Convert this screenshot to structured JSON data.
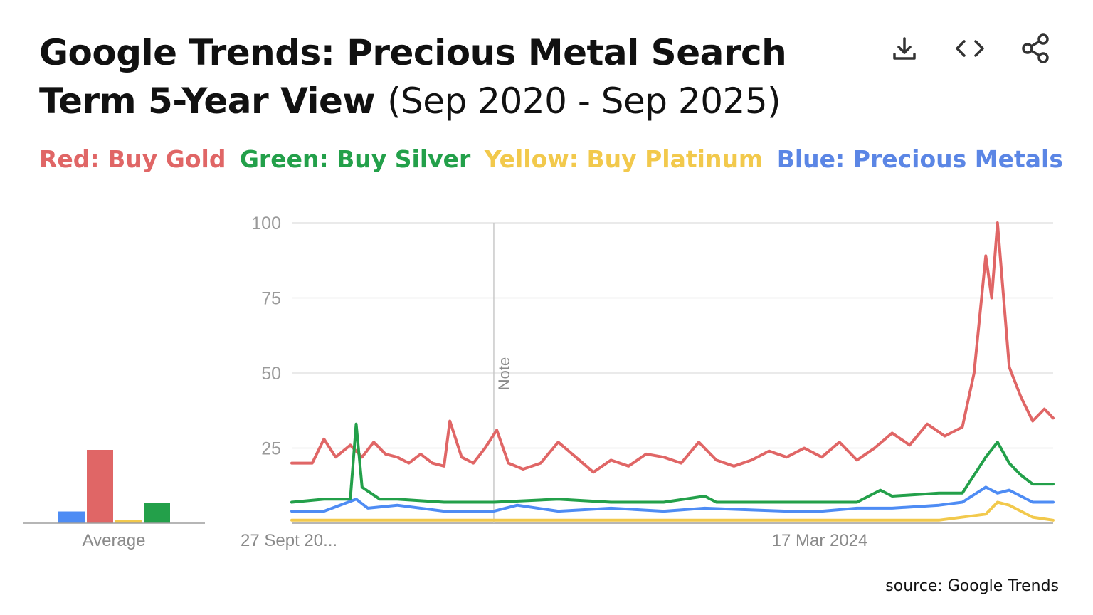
{
  "header": {
    "title_bold": "Google Trends: Precious Metal Search Term 5-Year View",
    "title_light": "(Sep 2020 - Sep 2025)",
    "icons": [
      "download-icon",
      "embed-code-icon",
      "share-icon"
    ]
  },
  "legend": [
    {
      "text": "Red: Buy Gold",
      "color": "#e06666"
    },
    {
      "text": "Green: Buy Silver",
      "color": "#23a04a"
    },
    {
      "text": "Yellow: Buy Platinum",
      "color": "#f2c94c"
    },
    {
      "text": "Blue: Precious Metals",
      "color": "#5b86e5"
    }
  ],
  "source": "source: Google Trends",
  "chart_data": [
    {
      "type": "bar",
      "xlabel": "Average",
      "categories": [
        "Precious Metals",
        "Buy Gold",
        "Buy Platinum",
        "Buy Silver"
      ],
      "values": [
        4,
        25,
        1,
        7
      ],
      "colors": [
        "#4e8cf4",
        "#e06666",
        "#f2c94c",
        "#23a04a"
      ]
    },
    {
      "type": "line",
      "x_start": "2020-09-27",
      "x_end": "2025-09-21",
      "x_tick_labels": [
        "27 Sept 20...",
        "17 Mar 2024"
      ],
      "ylim": [
        0,
        100
      ],
      "y_ticks": [
        25,
        50,
        75,
        100
      ],
      "grid": true,
      "annotation": {
        "text": "Note",
        "date": "2022-01-23"
      },
      "series": [
        {
          "name": "Buy Gold",
          "color": "#e06666",
          "points": [
            [
              "2020-09-27",
              20
            ],
            [
              "2020-11-15",
              20
            ],
            [
              "2020-12-13",
              28
            ],
            [
              "2021-01-10",
              22
            ],
            [
              "2021-02-14",
              26
            ],
            [
              "2021-03-14",
              22
            ],
            [
              "2021-04-11",
              27
            ],
            [
              "2021-05-09",
              23
            ],
            [
              "2021-06-06",
              22
            ],
            [
              "2021-07-04",
              20
            ],
            [
              "2021-08-01",
              23
            ],
            [
              "2021-08-29",
              20
            ],
            [
              "2021-09-26",
              19
            ],
            [
              "2021-10-10",
              34
            ],
            [
              "2021-11-07",
              22
            ],
            [
              "2021-12-05",
              20
            ],
            [
              "2022-01-02",
              25
            ],
            [
              "2022-01-30",
              31
            ],
            [
              "2022-02-27",
              20
            ],
            [
              "2022-04-03",
              18
            ],
            [
              "2022-05-15",
              20
            ],
            [
              "2022-06-26",
              27
            ],
            [
              "2022-08-07",
              22
            ],
            [
              "2022-09-18",
              17
            ],
            [
              "2022-10-30",
              21
            ],
            [
              "2022-12-11",
              19
            ],
            [
              "2023-01-22",
              23
            ],
            [
              "2023-03-05",
              22
            ],
            [
              "2023-04-16",
              20
            ],
            [
              "2023-05-28",
              27
            ],
            [
              "2023-07-09",
              21
            ],
            [
              "2023-08-20",
              19
            ],
            [
              "2023-10-01",
              21
            ],
            [
              "2023-11-12",
              24
            ],
            [
              "2023-12-24",
              22
            ],
            [
              "2024-02-04",
              25
            ],
            [
              "2024-03-17",
              22
            ],
            [
              "2024-04-28",
              27
            ],
            [
              "2024-06-09",
              21
            ],
            [
              "2024-07-21",
              25
            ],
            [
              "2024-09-01",
              30
            ],
            [
              "2024-10-13",
              26
            ],
            [
              "2024-11-24",
              33
            ],
            [
              "2025-01-05",
              29
            ],
            [
              "2025-02-16",
              32
            ],
            [
              "2025-03-16",
              50
            ],
            [
              "2025-04-13",
              89
            ],
            [
              "2025-04-27",
              75
            ],
            [
              "2025-05-11",
              100
            ],
            [
              "2025-06-08",
              52
            ],
            [
              "2025-07-06",
              42
            ],
            [
              "2025-08-03",
              34
            ],
            [
              "2025-08-31",
              38
            ],
            [
              "2025-09-21",
              35
            ]
          ]
        },
        {
          "name": "Buy Silver",
          "color": "#23a04a",
          "points": [
            [
              "2020-09-27",
              7
            ],
            [
              "2020-12-13",
              8
            ],
            [
              "2021-02-14",
              8
            ],
            [
              "2021-02-28",
              33
            ],
            [
              "2021-03-14",
              12
            ],
            [
              "2021-04-25",
              8
            ],
            [
              "2021-06-06",
              8
            ],
            [
              "2021-09-26",
              7
            ],
            [
              "2022-01-23",
              7
            ],
            [
              "2022-06-26",
              8
            ],
            [
              "2022-10-30",
              7
            ],
            [
              "2023-03-05",
              7
            ],
            [
              "2023-06-11",
              9
            ],
            [
              "2023-07-09",
              7
            ],
            [
              "2023-12-24",
              7
            ],
            [
              "2024-03-17",
              7
            ],
            [
              "2024-06-09",
              7
            ],
            [
              "2024-08-04",
              11
            ],
            [
              "2024-09-01",
              9
            ],
            [
              "2024-12-22",
              10
            ],
            [
              "2025-02-16",
              10
            ],
            [
              "2025-04-13",
              22
            ],
            [
              "2025-05-11",
              27
            ],
            [
              "2025-06-08",
              20
            ],
            [
              "2025-07-06",
              16
            ],
            [
              "2025-08-03",
              13
            ],
            [
              "2025-09-21",
              13
            ]
          ]
        },
        {
          "name": "Precious Metals",
          "color": "#4e8cf4",
          "points": [
            [
              "2020-09-27",
              4
            ],
            [
              "2020-12-13",
              4
            ],
            [
              "2021-02-28",
              8
            ],
            [
              "2021-03-28",
              5
            ],
            [
              "2021-06-06",
              6
            ],
            [
              "2021-09-26",
              4
            ],
            [
              "2022-01-23",
              4
            ],
            [
              "2022-03-20",
              6
            ],
            [
              "2022-06-26",
              4
            ],
            [
              "2022-10-30",
              5
            ],
            [
              "2023-03-05",
              4
            ],
            [
              "2023-06-11",
              5
            ],
            [
              "2023-12-24",
              4
            ],
            [
              "2024-03-17",
              4
            ],
            [
              "2024-06-09",
              5
            ],
            [
              "2024-09-01",
              5
            ],
            [
              "2024-12-22",
              6
            ],
            [
              "2025-02-16",
              7
            ],
            [
              "2025-04-13",
              12
            ],
            [
              "2025-05-11",
              10
            ],
            [
              "2025-06-08",
              11
            ],
            [
              "2025-07-06",
              9
            ],
            [
              "2025-08-03",
              7
            ],
            [
              "2025-09-21",
              7
            ]
          ]
        },
        {
          "name": "Buy Platinum",
          "color": "#f2c94c",
          "points": [
            [
              "2020-09-27",
              1
            ],
            [
              "2021-09-26",
              1
            ],
            [
              "2022-01-23",
              1
            ],
            [
              "2022-06-26",
              1
            ],
            [
              "2023-06-11",
              1
            ],
            [
              "2024-03-17",
              1
            ],
            [
              "2024-12-22",
              1
            ],
            [
              "2025-04-13",
              3
            ],
            [
              "2025-05-11",
              7
            ],
            [
              "2025-06-08",
              6
            ],
            [
              "2025-07-06",
              4
            ],
            [
              "2025-08-03",
              2
            ],
            [
              "2025-09-21",
              1
            ]
          ]
        }
      ]
    }
  ]
}
